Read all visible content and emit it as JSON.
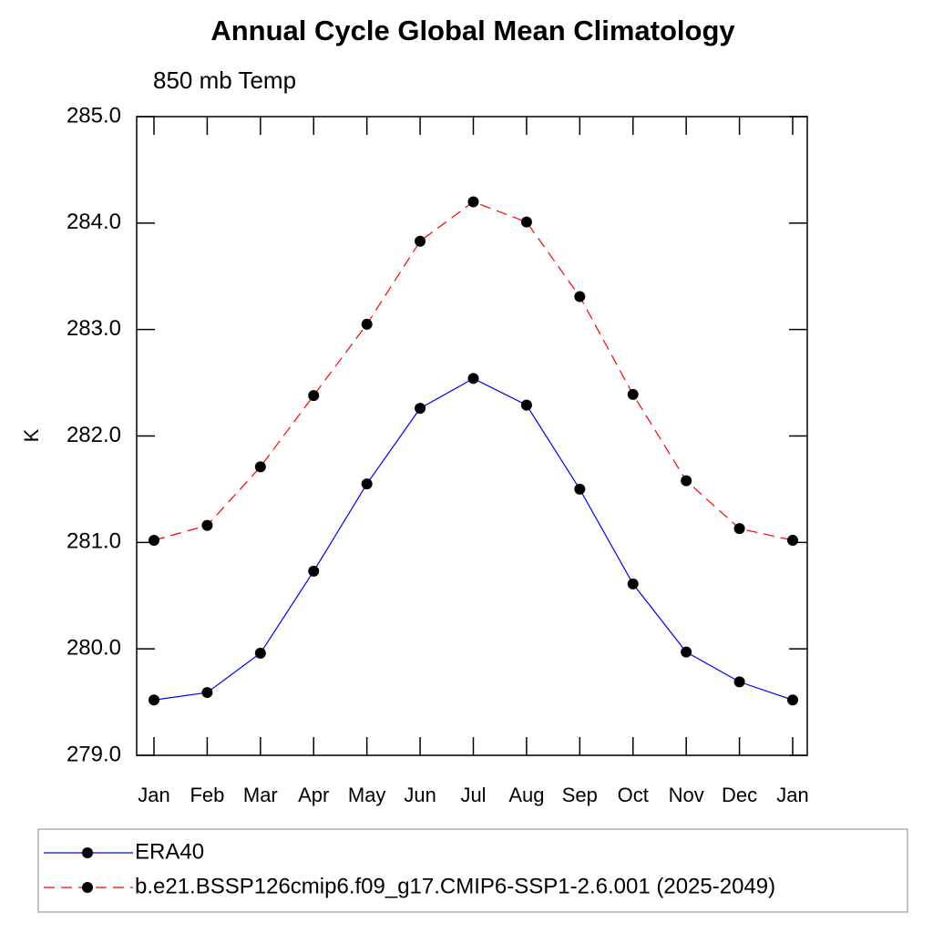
{
  "chart_data": {
    "type": "line",
    "title": "Annual Cycle Global Mean Climatology",
    "subtitle": "850 mb Temp",
    "y_label": "K",
    "categories": [
      "Jan",
      "Feb",
      "Mar",
      "Apr",
      "May",
      "Jun",
      "Jul",
      "Aug",
      "Sep",
      "Oct",
      "Nov",
      "Dec",
      "Jan"
    ],
    "series": [
      {
        "name": "ERA40",
        "color": "#0000ff",
        "dashed": false,
        "values": [
          279.52,
          279.59,
          279.96,
          280.73,
          281.55,
          282.26,
          282.54,
          282.29,
          281.5,
          280.61,
          279.97,
          279.69,
          279.52
        ]
      },
      {
        "name": "b.e21.BSSP126cmip6.f09_g17.CMIP6-SSP1-2.6.001 (2025-2049)",
        "color": "#ff0000",
        "dashed": true,
        "values": [
          281.02,
          281.16,
          281.71,
          282.38,
          283.05,
          283.83,
          284.2,
          284.01,
          283.31,
          282.39,
          281.58,
          281.13,
          281.02
        ]
      }
    ],
    "ylim": [
      279,
      285
    ],
    "yticks": [
      {
        "value": 279,
        "label": "279.0"
      },
      {
        "value": 280,
        "label": "280.0"
      },
      {
        "value": 281,
        "label": "281.0"
      },
      {
        "value": 282,
        "label": "282.0"
      },
      {
        "value": 283,
        "label": "283.0"
      },
      {
        "value": 284,
        "label": "284.0"
      },
      {
        "value": 285,
        "label": "285.0"
      }
    ],
    "grid": false
  }
}
